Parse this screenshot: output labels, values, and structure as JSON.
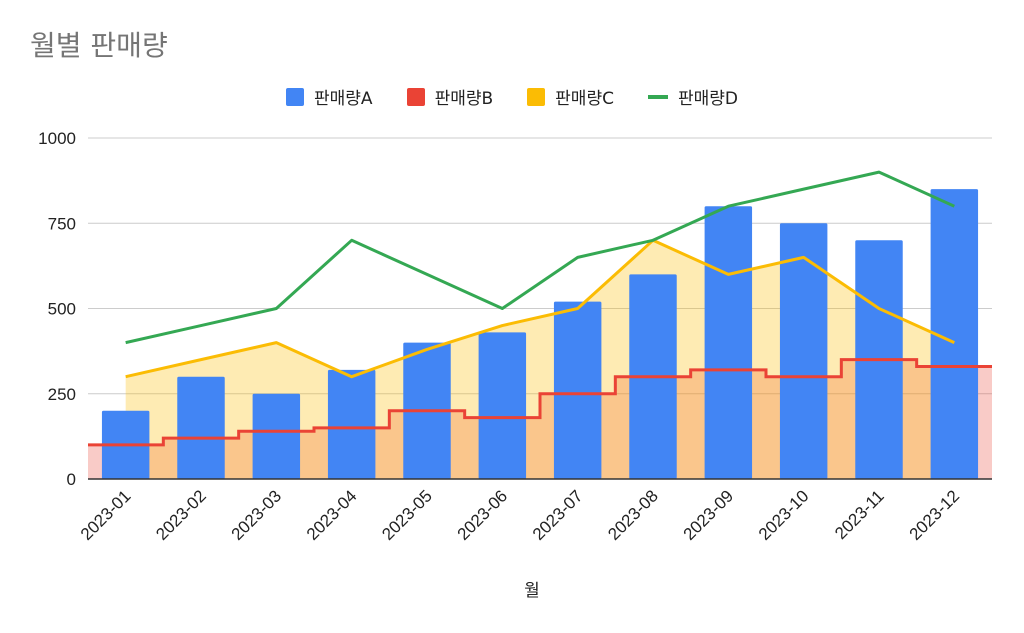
{
  "chart_data": {
    "type": "bar",
    "title": "월별 판매량",
    "xlabel": "월",
    "ylabel": "",
    "ylim": [
      0,
      1000
    ],
    "yticks": [
      0,
      250,
      500,
      750,
      1000
    ],
    "categories": [
      "2023-01",
      "2023-02",
      "2023-03",
      "2023-04",
      "2023-05",
      "2023-06",
      "2023-07",
      "2023-08",
      "2023-09",
      "2023-10",
      "2023-11",
      "2023-12"
    ],
    "legend_position": "top",
    "grid": true,
    "series": [
      {
        "name": "판매량A",
        "type": "bar",
        "color": "#4285F4",
        "values": [
          200,
          300,
          250,
          320,
          400,
          430,
          520,
          600,
          800,
          750,
          700,
          850
        ]
      },
      {
        "name": "판매량B",
        "type": "stepped-area",
        "color": "#EA4335",
        "values": [
          100,
          120,
          140,
          150,
          200,
          180,
          250,
          300,
          320,
          300,
          350,
          330
        ]
      },
      {
        "name": "판매량C",
        "type": "area",
        "color": "#FBBC04",
        "values": [
          300,
          350,
          400,
          300,
          380,
          450,
          500,
          700,
          600,
          650,
          500,
          400
        ]
      },
      {
        "name": "판매량D",
        "type": "line",
        "color": "#34A853",
        "values": [
          400,
          450,
          500,
          700,
          600,
          500,
          650,
          700,
          800,
          850,
          900,
          800
        ]
      }
    ]
  }
}
